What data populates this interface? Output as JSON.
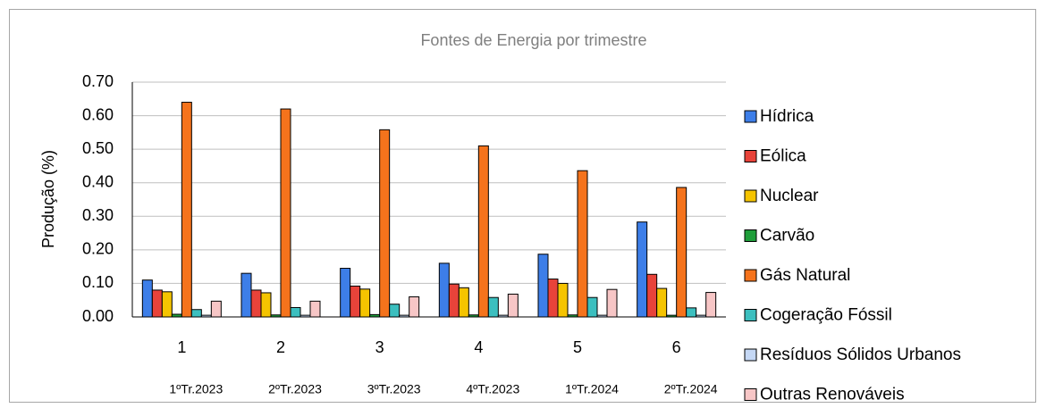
{
  "chart_data": {
    "type": "bar",
    "title": "Fontes de Energia por trimestre",
    "y_label": "Produção (%)",
    "categories": [
      "1",
      "2",
      "3",
      "4",
      "5",
      "6"
    ],
    "period_labels": [
      "1ºTr.2023",
      "2ºTr.2023",
      "3ºTr.2023",
      "4ºTr.2023",
      "1ºTr.2024",
      "2ºTr.2024"
    ],
    "ylim": [
      0,
      0.7
    ],
    "yticks": [
      {
        "value": 0,
        "label": "0.00"
      },
      {
        "value": 0.1,
        "label": "0.10"
      },
      {
        "value": 0.2,
        "label": "0.20"
      },
      {
        "value": 0.3,
        "label": "0.30"
      },
      {
        "value": 0.4,
        "label": "0.40"
      },
      {
        "value": 0.5,
        "label": "0.50"
      },
      {
        "value": 0.6,
        "label": "0.60"
      },
      {
        "value": 0.7,
        "label": "0.70"
      }
    ],
    "grid": true,
    "legend": "right",
    "series": [
      {
        "name": "Hídrica",
        "color": "#3d7ee8",
        "values": [
          0.11,
          0.13,
          0.145,
          0.16,
          0.187,
          0.283
        ]
      },
      {
        "name": "Eólica",
        "color": "#e8433a",
        "values": [
          0.08,
          0.08,
          0.092,
          0.098,
          0.113,
          0.127
        ]
      },
      {
        "name": "Nuclear",
        "color": "#f5c400",
        "values": [
          0.075,
          0.072,
          0.083,
          0.087,
          0.1,
          0.085
        ]
      },
      {
        "name": "Carvão",
        "color": "#1f9e3a",
        "values": [
          0.008,
          0.006,
          0.007,
          0.006,
          0.006,
          0.005
        ]
      },
      {
        "name": "Gás Natural",
        "color": "#f5731c",
        "values": [
          0.64,
          0.62,
          0.558,
          0.51,
          0.436,
          0.386
        ]
      },
      {
        "name": "Cogeração Fóssil",
        "color": "#3cbfbf",
        "values": [
          0.022,
          0.028,
          0.038,
          0.058,
          0.058,
          0.027
        ]
      },
      {
        "name": "Resíduos Sólidos Urbanos",
        "color": "#c5d8f5",
        "values": [
          0.005,
          0.005,
          0.005,
          0.005,
          0.005,
          0.005
        ]
      },
      {
        "name": "Outras Renováveis",
        "color": "#f7c6c6",
        "values": [
          0.047,
          0.047,
          0.06,
          0.068,
          0.082,
          0.073
        ]
      }
    ]
  }
}
